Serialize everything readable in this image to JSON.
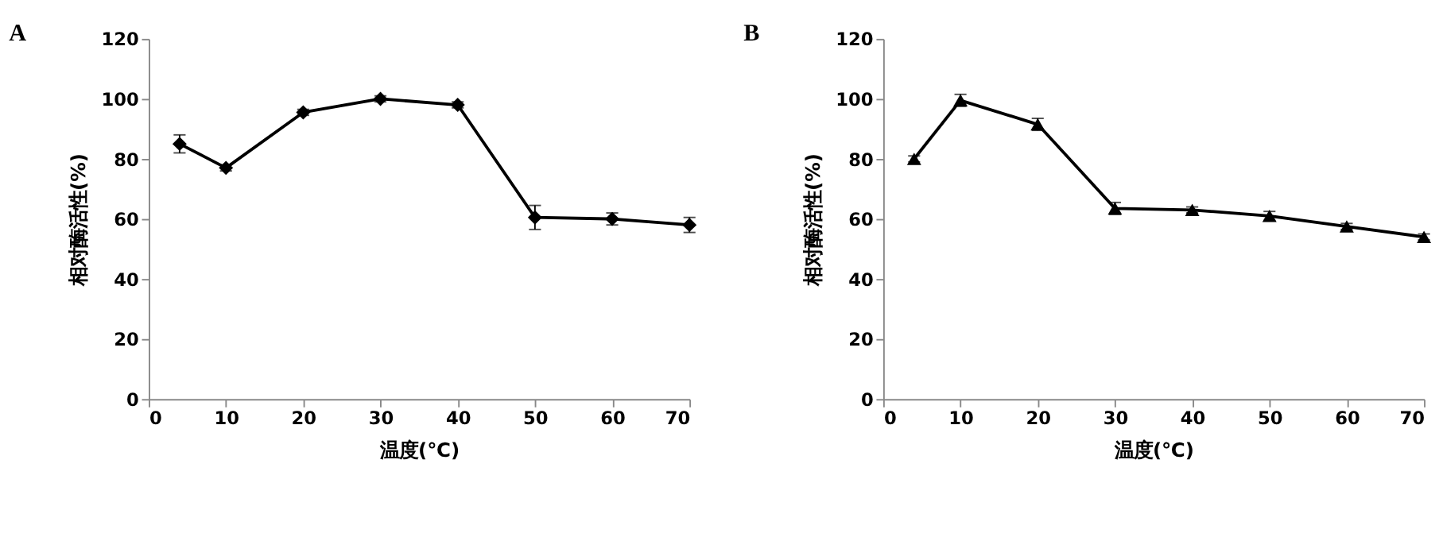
{
  "chart_data": [
    {
      "type": "line",
      "title": "A",
      "xlabel": "温度(℃)",
      "ylabel": "相对酶活性(%)",
      "x": [
        4,
        10,
        20,
        30,
        40,
        50,
        60,
        70
      ],
      "xlim": [
        0,
        70
      ],
      "xticks": [
        0,
        10,
        20,
        30,
        40,
        50,
        60,
        70
      ],
      "ylim": [
        0,
        120
      ],
      "yticks": [
        0,
        20,
        40,
        60,
        80,
        100,
        120
      ],
      "grid": false,
      "marker": "diamond",
      "line_style": "solid",
      "series": [
        {
          "color": "#000000",
          "values": [
            85,
            77,
            95.5,
            100,
            98,
            60.5,
            60,
            58
          ],
          "errors": [
            3,
            1,
            1,
            1,
            1,
            4,
            2,
            2.5
          ]
        }
      ]
    },
    {
      "type": "line",
      "title": "B",
      "xlabel": "温度(℃)",
      "ylabel": "相对酶活性(%)",
      "x": [
        4,
        10,
        20,
        30,
        40,
        50,
        60,
        70
      ],
      "xlim": [
        0,
        70
      ],
      "xticks": [
        0,
        10,
        20,
        30,
        40,
        50,
        60,
        70
      ],
      "ylim": [
        0,
        120
      ],
      "yticks": [
        0,
        20,
        40,
        60,
        80,
        100,
        120
      ],
      "grid": false,
      "marker": "triangle",
      "line_style": "solid",
      "series": [
        {
          "color": "#000000",
          "values": [
            80,
            99.5,
            91.5,
            63.5,
            63,
            61,
            57.5,
            54
          ],
          "errors": [
            1,
            2,
            2,
            2,
            1,
            1.5,
            1,
            1
          ]
        }
      ]
    }
  ]
}
